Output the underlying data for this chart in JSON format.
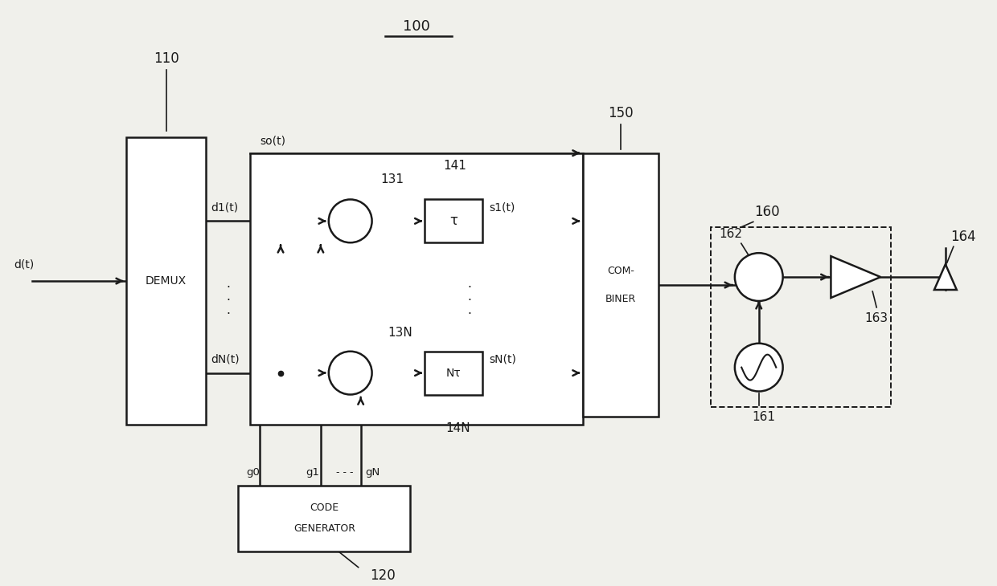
{
  "bg_color": "#f0f0eb",
  "line_color": "#1a1a1a",
  "lw": 1.8,
  "fig_width": 12.4,
  "fig_height": 7.3,
  "labels": {
    "title": "100",
    "n110": "110",
    "n120": "~120",
    "n131": "131",
    "n13N": "13N",
    "n141": "141",
    "n14N": "14N",
    "n150": "150",
    "n160": "160",
    "n161": "161",
    "n162": "162",
    "n163": "163",
    "n164": "164",
    "demux": "DEMUX",
    "code_gen1": "CODE",
    "code_gen2": "GENERATOR",
    "combiner1": "COM-",
    "combiner2": "BINER",
    "tau1": "τ",
    "tauN": "Nτ",
    "d_t": "d(t)",
    "d1_t": "d1(t)",
    "dN_t": "dN(t)",
    "s0_t": "so(t)",
    "s1_t": "s1(t)",
    "sN_t": "sN(t)",
    "g0": "g0",
    "g1": "g1",
    "gN": "gN",
    "gdots": "- - -"
  }
}
